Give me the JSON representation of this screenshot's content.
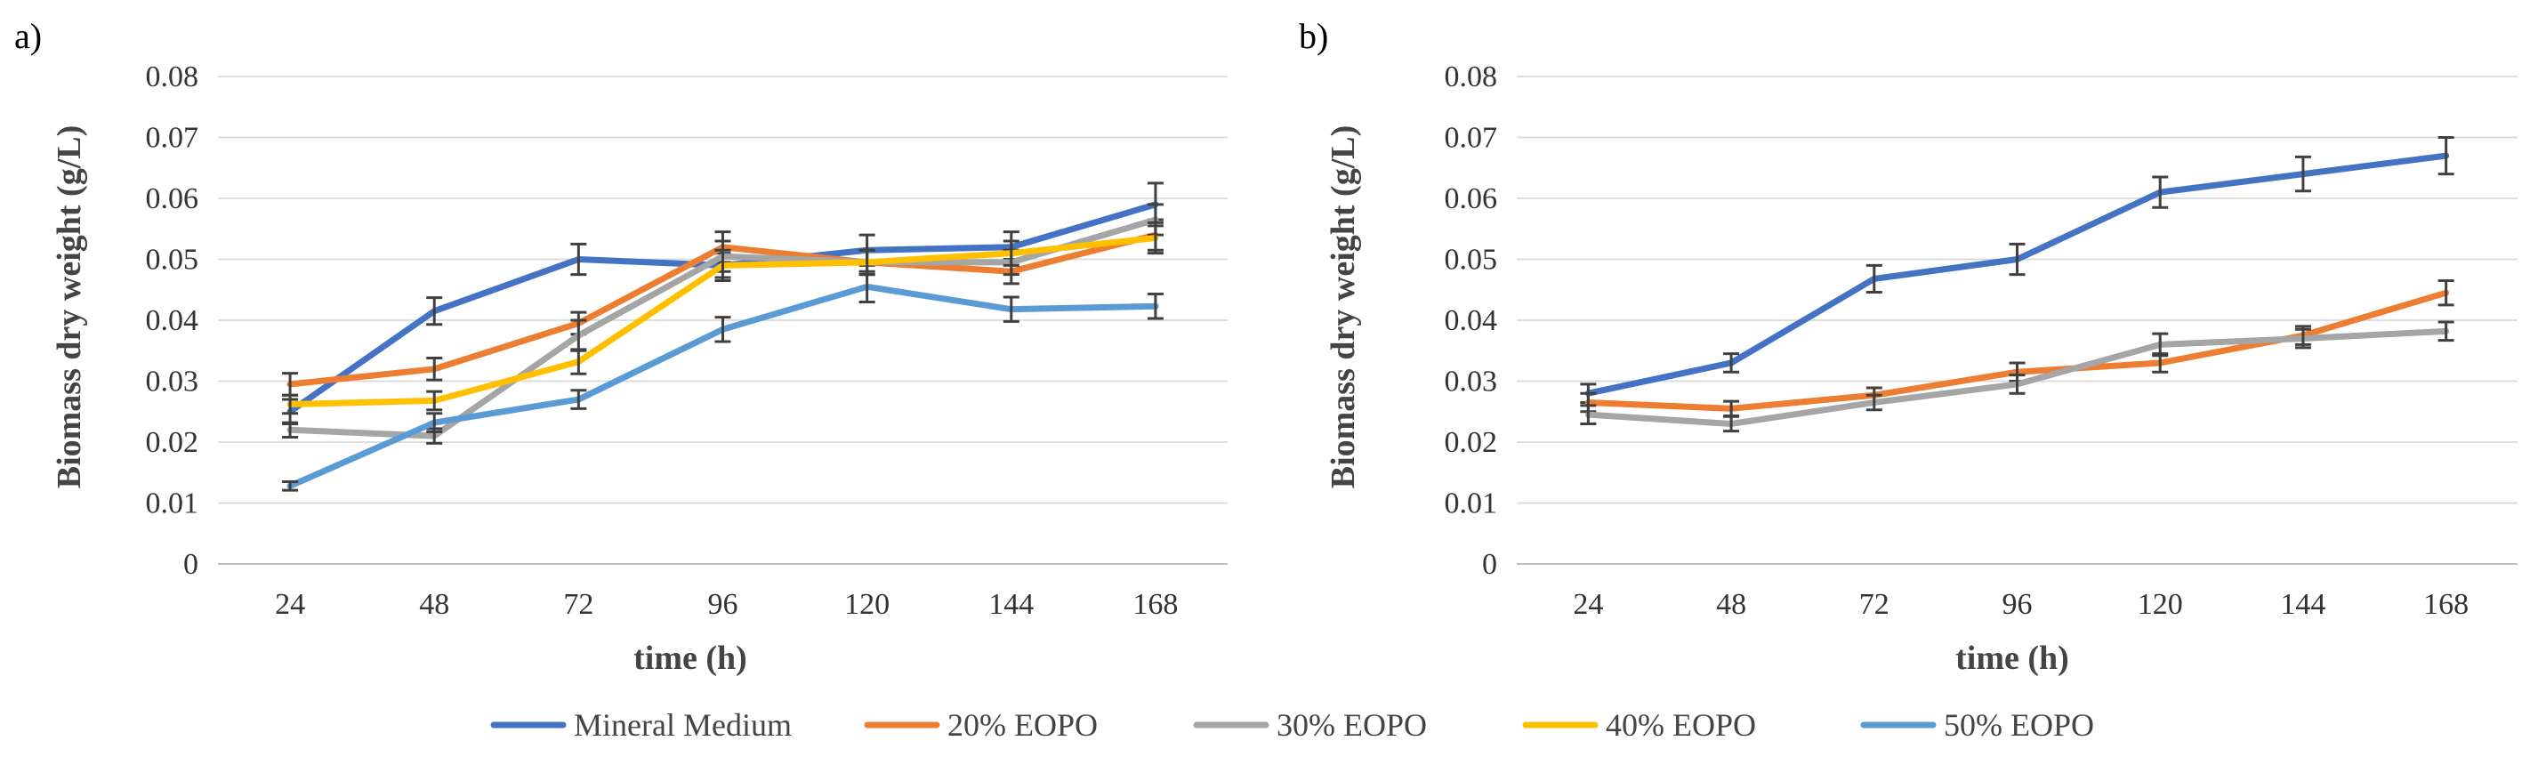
{
  "chart_data": [
    {
      "type": "line",
      "panel_label": "a)",
      "xlabel": "time (h)",
      "ylabel": "Biomass dry weight (g/L)",
      "categories": [
        "24",
        "48",
        "72",
        "96",
        "120",
        "144",
        "168"
      ],
      "ylim": [
        0,
        0.08
      ],
      "yticks": [
        "0",
        "0.01",
        "0.02",
        "0.03",
        "0.04",
        "0.05",
        "0.06",
        "0.07",
        "0.08"
      ],
      "grid": true,
      "series": [
        {
          "name": "Mineral Medium",
          "color": "#4472C4",
          "values": [
            0.025,
            0.0415,
            0.05,
            0.049,
            0.0515,
            0.052,
            0.059
          ],
          "errors": [
            0.002,
            0.0022,
            0.0025,
            0.002,
            0.0025,
            0.0025,
            0.0035
          ]
        },
        {
          "name": "20% EOPO",
          "color": "#ED7D31",
          "values": [
            0.0295,
            0.032,
            0.0395,
            0.052,
            0.0495,
            0.048,
            0.054
          ],
          "errors": [
            0.0018,
            0.0018,
            0.0018,
            0.0025,
            0.002,
            0.002,
            0.0025
          ]
        },
        {
          "name": "30% EOPO",
          "color": "#A5A5A5",
          "values": [
            0.022,
            0.021,
            0.0375,
            0.0505,
            0.0495,
            0.0495,
            0.0565
          ],
          "errors": [
            0.0012,
            0.0012,
            0.0025,
            0.0025,
            0.002,
            0.002,
            0.0025
          ]
        },
        {
          "name": "40% EOPO",
          "color": "#FFC000",
          "values": [
            0.0262,
            0.0268,
            0.0332,
            0.049,
            0.0495,
            0.051,
            0.0535
          ],
          "errors": [
            0.0015,
            0.0015,
            0.002,
            0.0025,
            0.002,
            0.002,
            0.0025
          ]
        },
        {
          "name": "50% EOPO",
          "color": "#5B9BD5",
          "values": [
            0.0128,
            0.0232,
            0.027,
            0.0385,
            0.0455,
            0.0418,
            0.0423
          ],
          "errors": [
            0.0007,
            0.0015,
            0.0015,
            0.002,
            0.0025,
            0.002,
            0.002
          ]
        }
      ]
    },
    {
      "type": "line",
      "panel_label": "b)",
      "xlabel": "time (h)",
      "ylabel": "Biomass dry weight (g/L)",
      "categories": [
        "24",
        "48",
        "72",
        "96",
        "120",
        "144",
        "168"
      ],
      "ylim": [
        0,
        0.08
      ],
      "yticks": [
        "0",
        "0.01",
        "0.02",
        "0.03",
        "0.04",
        "0.05",
        "0.06",
        "0.07",
        "0.08"
      ],
      "grid": true,
      "series": [
        {
          "name": "Mineral Medium",
          "color": "#4472C4",
          "values": [
            0.028,
            0.033,
            0.0468,
            0.05,
            0.061,
            0.064,
            0.067
          ],
          "errors": [
            0.0015,
            0.0015,
            0.0022,
            0.0025,
            0.0025,
            0.0028,
            0.003
          ]
        },
        {
          "name": "20% EOPO",
          "color": "#ED7D31",
          "values": [
            0.0265,
            0.0255,
            0.0277,
            0.0315,
            0.033,
            0.0375,
            0.0445
          ],
          "errors": [
            0.0015,
            0.0012,
            0.0012,
            0.0015,
            0.0015,
            0.0015,
            0.002
          ]
        },
        {
          "name": "30% EOPO",
          "color": "#A5A5A5",
          "values": [
            0.0245,
            0.023,
            0.0265,
            0.0295,
            0.036,
            0.037,
            0.0382
          ],
          "errors": [
            0.0015,
            0.0012,
            0.0012,
            0.0015,
            0.0018,
            0.0015,
            0.0015
          ]
        }
      ]
    }
  ],
  "legend": {
    "placement": "bottom-center",
    "items": [
      {
        "name": "Mineral Medium",
        "color": "#4472C4"
      },
      {
        "name": "20% EOPO",
        "color": "#ED7D31"
      },
      {
        "name": "30% EOPO",
        "color": "#A5A5A5"
      },
      {
        "name": "40% EOPO",
        "color": "#FFC000"
      },
      {
        "name": "50% EOPO",
        "color": "#5B9BD5"
      }
    ]
  }
}
